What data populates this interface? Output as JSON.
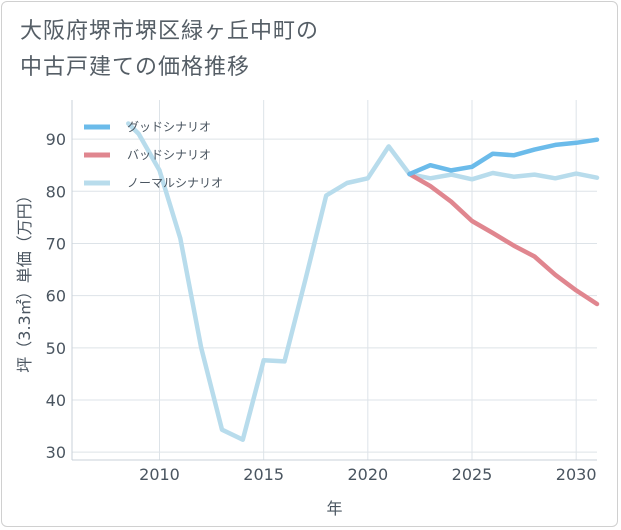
{
  "title_lines": [
    "大阪府堺市堺区緑ヶ丘中町の",
    "中古戸建ての価格推移"
  ],
  "chart_data": {
    "type": "line",
    "xlabel": "年",
    "ylabel": "坪（3.3㎡）単価（万円）",
    "xlim": [
      2005.8,
      2031
    ],
    "ylim": [
      28.5,
      97.5
    ],
    "xticks": [
      2010,
      2015,
      2020,
      2025,
      2030
    ],
    "yticks": [
      30,
      40,
      50,
      60,
      70,
      80,
      90
    ],
    "grid": true,
    "legend_position": "top-left",
    "series": [
      {
        "name": "グッドシナリオ",
        "color": "#6bbbea",
        "x": [
          2022,
          2023,
          2024,
          2025,
          2026,
          2027,
          2028,
          2029,
          2030,
          2031
        ],
        "y": [
          83.3,
          85.0,
          84.0,
          84.7,
          87.2,
          86.9,
          88.0,
          88.9,
          89.3,
          89.9
        ]
      },
      {
        "name": "バッドシナリオ",
        "color": "#e0868f",
        "x": [
          2022,
          2023,
          2024,
          2025,
          2026,
          2027,
          2028,
          2029,
          2030,
          2031
        ],
        "y": [
          83.3,
          81.0,
          78.0,
          74.3,
          72.0,
          69.6,
          67.5,
          64.0,
          61.0,
          58.4
        ]
      },
      {
        "name": "ノーマルシナリオ",
        "color": "#b8dcec",
        "x": [
          2008.5,
          2009,
          2010,
          2011,
          2012,
          2013,
          2014,
          2015,
          2016,
          2017,
          2018,
          2019,
          2020,
          2021,
          2022,
          2023,
          2024,
          2025,
          2026,
          2027,
          2028,
          2029,
          2030,
          2031
        ],
        "y": [
          93.0,
          91.0,
          84.0,
          71.0,
          50.0,
          34.3,
          32.4,
          47.6,
          47.4,
          63.0,
          79.2,
          81.6,
          82.5,
          88.6,
          83.3,
          82.5,
          83.2,
          82.3,
          83.5,
          82.8,
          83.2,
          82.5,
          83.4,
          82.6
        ]
      }
    ]
  }
}
